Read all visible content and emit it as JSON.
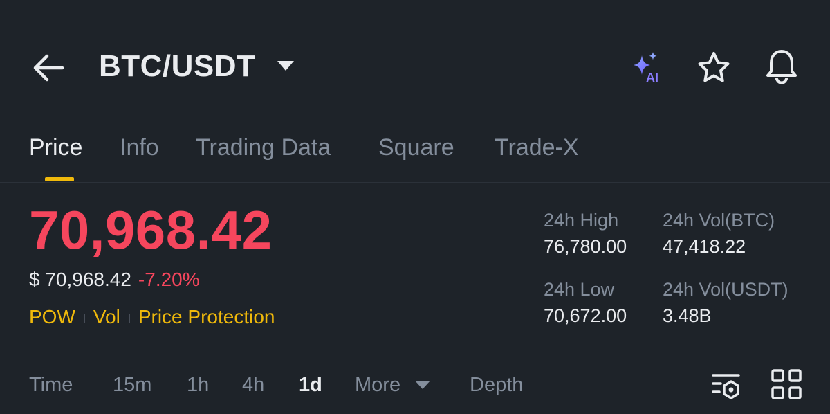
{
  "header": {
    "back_icon": "arrow-left-icon",
    "pair": "BTC/USDT",
    "pair_caret_icon": "caret-down-icon",
    "ai_icon": "sparkle-ai-icon",
    "ai_badge": "AI",
    "favorite_icon": "star-icon",
    "alert_icon": "bell-icon"
  },
  "tabs": [
    {
      "label": "Price",
      "active": true
    },
    {
      "label": "Info",
      "active": false
    },
    {
      "label": "Trading Data",
      "active": false
    },
    {
      "label": "Square",
      "active": false
    },
    {
      "label": "Trade-X",
      "active": false
    }
  ],
  "price": {
    "last": "70,968.42",
    "usd": "$ 70,968.42",
    "change_pct": "-7.20%",
    "tags": [
      "POW",
      "Vol",
      "Price Protection"
    ]
  },
  "stats": {
    "high_label": "24h High",
    "high_value": "76,780.00",
    "low_label": "24h Low",
    "low_value": "70,672.00",
    "vol_btc_label": "24h Vol(BTC)",
    "vol_btc_value": "47,418.22",
    "vol_usdt_label": "24h Vol(USDT)",
    "vol_usdt_value": "3.48B"
  },
  "toolbar": {
    "items": [
      "Time",
      "15m",
      "1h",
      "4h",
      "1d",
      "More",
      "Depth"
    ],
    "active": "1d",
    "indicator_icon": "indicator-settings-icon",
    "layout_icon": "grid-icon"
  },
  "colors": {
    "background": "#1e2329",
    "accent": "#f0b90b",
    "down": "#f6465d",
    "text_primary": "#eaecef",
    "text_secondary": "#848e9c"
  }
}
